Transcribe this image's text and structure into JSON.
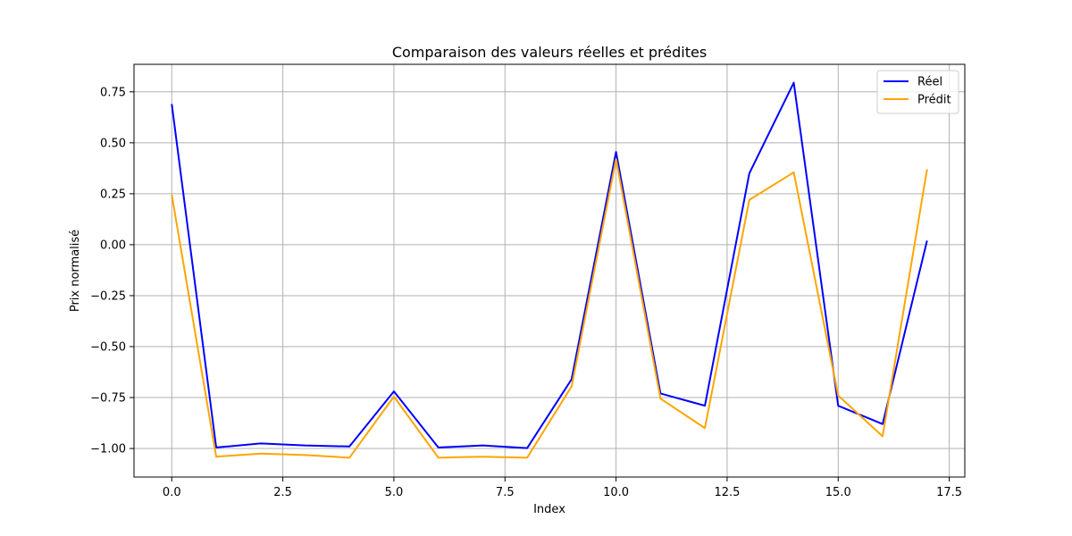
{
  "chart_data": {
    "type": "line",
    "title": "Comparaison des valeurs réelles et prédites",
    "xlabel": "Index",
    "ylabel": "Prix normalisé",
    "x": [
      0,
      1,
      2,
      3,
      4,
      5,
      6,
      7,
      8,
      9,
      10,
      11,
      12,
      13,
      14,
      15,
      16,
      17
    ],
    "xlim": [
      -0.85,
      17.85
    ],
    "ylim": [
      -1.14,
      0.885
    ],
    "xticks": [
      0.0,
      2.5,
      5.0,
      7.5,
      10.0,
      12.5,
      15.0,
      17.5
    ],
    "xtick_labels": [
      "0.0",
      "2.5",
      "5.0",
      "7.5",
      "10.0",
      "12.5",
      "15.0",
      "17.5"
    ],
    "yticks": [
      -1.0,
      -0.75,
      -0.5,
      -0.25,
      0.0,
      0.25,
      0.5,
      0.75
    ],
    "ytick_labels": [
      "−1.00",
      "−0.75",
      "−0.50",
      "−0.25",
      "0.00",
      "0.25",
      "0.50",
      "0.75"
    ],
    "grid": true,
    "legend_position": "top-right",
    "series": [
      {
        "name": "Réel",
        "color": "#0000ff",
        "values": [
          0.69,
          -0.995,
          -0.975,
          -0.985,
          -0.99,
          -0.72,
          -0.995,
          -0.985,
          -0.998,
          -0.66,
          0.455,
          -0.73,
          -0.79,
          0.35,
          0.795,
          -0.79,
          -0.88,
          0.02
        ]
      },
      {
        "name": "Prédit",
        "color": "#ffa500",
        "values": [
          0.245,
          -1.04,
          -1.025,
          -1.032,
          -1.045,
          -0.745,
          -1.045,
          -1.04,
          -1.045,
          -0.695,
          0.42,
          -0.755,
          -0.9,
          0.22,
          0.355,
          -0.74,
          -0.94,
          0.37
        ]
      }
    ]
  }
}
